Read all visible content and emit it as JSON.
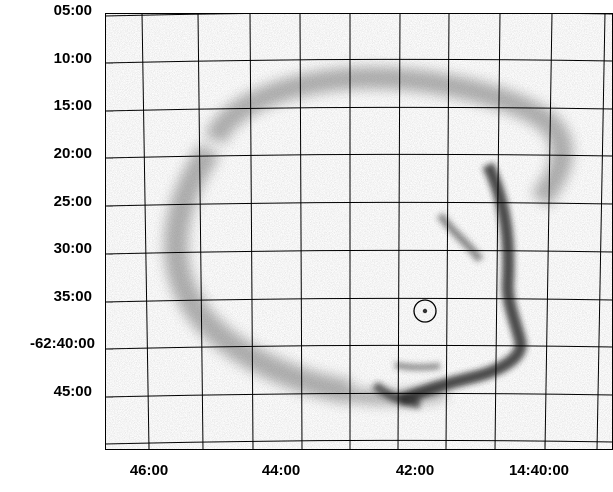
{
  "image": {
    "description_free": true,
    "background": "#ffffff",
    "noise_color": "#bdbdbd",
    "remnant_color": "#2a2a2a",
    "grid_color": "#000000",
    "marker": "circle"
  },
  "axes": {
    "dec_labels": [
      "05:00",
      "10:00",
      "15:00",
      "20:00",
      "25:00",
      "30:00",
      "35:00",
      "-62:40:00",
      "45:00"
    ],
    "ra_labels": [
      "46:00",
      "44:00",
      "42:00",
      "14:40:00"
    ]
  }
}
